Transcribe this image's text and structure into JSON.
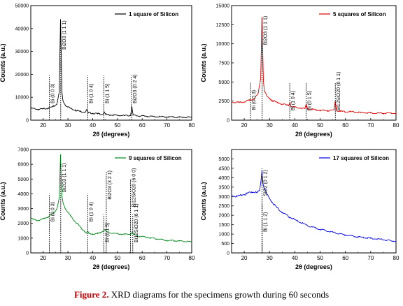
{
  "caption": {
    "label": "Figure 2.",
    "text": " XRD diagrams for the specimens growth during 60 seconds"
  },
  "chart_data": [
    {
      "type": "line",
      "title": "",
      "xlabel": "2θ (degrees)",
      "ylabel": "Counts (a.u.)",
      "xlim": [
        15,
        80
      ],
      "ylim": [
        0,
        50000
      ],
      "xticks": [
        20,
        30,
        40,
        50,
        60,
        70,
        80
      ],
      "yticks": [
        0,
        10000,
        20000,
        30000,
        40000,
        50000
      ],
      "grid": false,
      "legend_position": "top-right",
      "series": [
        {
          "name": "1 square of Silicon",
          "color": "#000000",
          "x": [
            15,
            18,
            20,
            22,
            24,
            25.5,
            26.5,
            27.0,
            27.3,
            27.6,
            28.0,
            29,
            31,
            33,
            35,
            37.0,
            37.6,
            38.2,
            40,
            42,
            44.2,
            44.6,
            45.2,
            47,
            50,
            53,
            55.3,
            55.8,
            56.3,
            58,
            62,
            66,
            70,
            75,
            80
          ],
          "y": [
            5200,
            4700,
            4900,
            5300,
            5800,
            7000,
            12000,
            44000,
            30000,
            12000,
            8500,
            6500,
            5200,
            4400,
            3800,
            3500,
            4500,
            3300,
            3000,
            2800,
            2600,
            3500,
            2500,
            2300,
            2100,
            2000,
            2100,
            6000,
            2200,
            1900,
            1700,
            1500,
            1400,
            1300,
            1200
          ]
        }
      ],
      "annotations": [
        {
          "text": "Bi (0 0 3)",
          "x": 22.5,
          "peak": 19500
        },
        {
          "text": "Bi2O3 (1 1 1)",
          "x": 27.1,
          "peak": 43000
        },
        {
          "text": "Bi (1 0 4)",
          "x": 38.0,
          "peak": 19500
        },
        {
          "text": "Bi (1 1 5)",
          "x": 44.5,
          "peak": 19500
        },
        {
          "text": "Bi2O3 (0 2 4)",
          "x": 55.7,
          "peak": 19500
        }
      ]
    },
    {
      "type": "line",
      "title": "",
      "xlabel": "2θ (degrees)",
      "ylabel": "Counts (a.u.)",
      "xlim": [
        15,
        80
      ],
      "ylim": [
        0,
        15000
      ],
      "xticks": [
        20,
        30,
        40,
        50,
        60,
        70,
        80
      ],
      "yticks": [
        0,
        2500,
        5000,
        7500,
        10000,
        12500,
        15000
      ],
      "grid": false,
      "legend_position": "top-right",
      "series": [
        {
          "name": "5 squares of Silicon",
          "color": "#e00000",
          "x": [
            15,
            18,
            20,
            22,
            24,
            25.5,
            26.5,
            27.0,
            27.3,
            27.6,
            28.0,
            29,
            31,
            33,
            35,
            37.5,
            38.0,
            38.5,
            40,
            42,
            44.0,
            44.5,
            45.0,
            47,
            50,
            53,
            55.5,
            56.0,
            56.5,
            58,
            62,
            66,
            70,
            75,
            80
          ],
          "y": [
            2400,
            2300,
            2400,
            2600,
            2800,
            3500,
            5500,
            13500,
            9000,
            5000,
            3800,
            3100,
            2600,
            2300,
            2100,
            1900,
            2300,
            1800,
            1700,
            1600,
            1500,
            2100,
            1500,
            1400,
            1300,
            1250,
            1300,
            2500,
            1250,
            1150,
            1100,
            1000,
            950,
            900,
            900
          ]
        }
      ],
      "annotations": [
        {
          "text": "Bi (0 0 3)",
          "x": 22.5,
          "peak": 5000
        },
        {
          "text": "Bi2O3 (1 1 1)",
          "x": 27.1,
          "peak": 13500
        },
        {
          "text": "Bi (1 0 4)",
          "x": 38.0,
          "peak": 4900
        },
        {
          "text": "Bi (0 1 5)",
          "x": 44.5,
          "peak": 4900
        },
        {
          "text": "Bi12SiO20 (6 1 1)",
          "x": 56.0,
          "peak": 4900
        }
      ]
    },
    {
      "type": "line",
      "title": "",
      "xlabel": "2θ (degrees)",
      "ylabel": "Counts (a.u.)",
      "xlim": [
        15,
        80
      ],
      "ylim": [
        0,
        7000
      ],
      "xticks": [
        20,
        30,
        40,
        50,
        60,
        70,
        80
      ],
      "yticks": [
        0,
        1000,
        2000,
        3000,
        4000,
        5000,
        6000,
        7000
      ],
      "grid": false,
      "legend_position": "top-right",
      "series": [
        {
          "name": "9 squares of Silicon",
          "color": "#00851a",
          "x": [
            15,
            18,
            20,
            22,
            24,
            25.5,
            26.5,
            27.0,
            27.3,
            27.6,
            28.0,
            29,
            31,
            33,
            35,
            37.5,
            38.0,
            38.5,
            40,
            42,
            44.5,
            45.0,
            45.5,
            47,
            50,
            53,
            55.5,
            56.0,
            56.5,
            58,
            62,
            66,
            70,
            75,
            80
          ],
          "y": [
            2300,
            2200,
            2300,
            2450,
            2650,
            3000,
            3700,
            6600,
            5000,
            3800,
            3400,
            3000,
            2500,
            2100,
            1750,
            1350,
            1450,
            1300,
            1280,
            1300,
            1500,
            1550,
            1450,
            1350,
            1300,
            1250,
            1280,
            1400,
            1250,
            1150,
            1050,
            950,
            850,
            800,
            750
          ]
        }
      ],
      "annotations": [
        {
          "text": "Bi (0 0 3)",
          "x": 22.5,
          "peak": 4000
        },
        {
          "text": "Bi2O3 (1 1 1)",
          "x": 27.1,
          "peak": 6000
        },
        {
          "text": "Bi (1 0 4)",
          "x": 38.0,
          "peak": 4000
        },
        {
          "text": "Bi (0 1 5)",
          "x": 44.5,
          "peak": 2600
        },
        {
          "text": "Bi2O3 (3 2 1)",
          "x": 45.5,
          "peak": 5500
        },
        {
          "text": "Bi12SiO20 (6 0 0)",
          "x": 55.3,
          "peak": 5000
        },
        {
          "text": "Bi12SiO20 (6 1 1)",
          "x": 56.2,
          "peak": 2600
        }
      ]
    },
    {
      "type": "line",
      "title": "",
      "xlabel": "2θ (degrees)",
      "ylabel": "Counts (a.u.)",
      "xlim": [
        15,
        80
      ],
      "ylim": [
        0,
        5500
      ],
      "xticks": [
        20,
        30,
        40,
        50,
        60,
        70,
        80
      ],
      "yticks": [
        0,
        500,
        1000,
        1500,
        2000,
        2500,
        3000,
        3500,
        4000,
        4500,
        5000
      ],
      "grid": false,
      "legend_position": "top-right",
      "series": [
        {
          "name": "17 squares of Silicon",
          "color": "#0000ee",
          "x": [
            15,
            17,
            19,
            21,
            23,
            25,
            26.0,
            26.6,
            27.0,
            27.4,
            28.0,
            29,
            31,
            33,
            35,
            38,
            41,
            45,
            50,
            55,
            60,
            65,
            70,
            75,
            80
          ],
          "y": [
            3050,
            3000,
            3080,
            3150,
            3250,
            3200,
            3300,
            3800,
            4400,
            3700,
            3400,
            3100,
            2700,
            2400,
            2150,
            1900,
            1700,
            1450,
            1250,
            1100,
            950,
            850,
            780,
            700,
            620
          ]
        }
      ],
      "annotations": [
        {
          "text": "SiO2 (0 1 2)",
          "x": 27.0,
          "peak": 4500
        },
        {
          "text": "Bi (1 1 2)",
          "x": 27.1,
          "peak": 2600
        }
      ]
    }
  ]
}
